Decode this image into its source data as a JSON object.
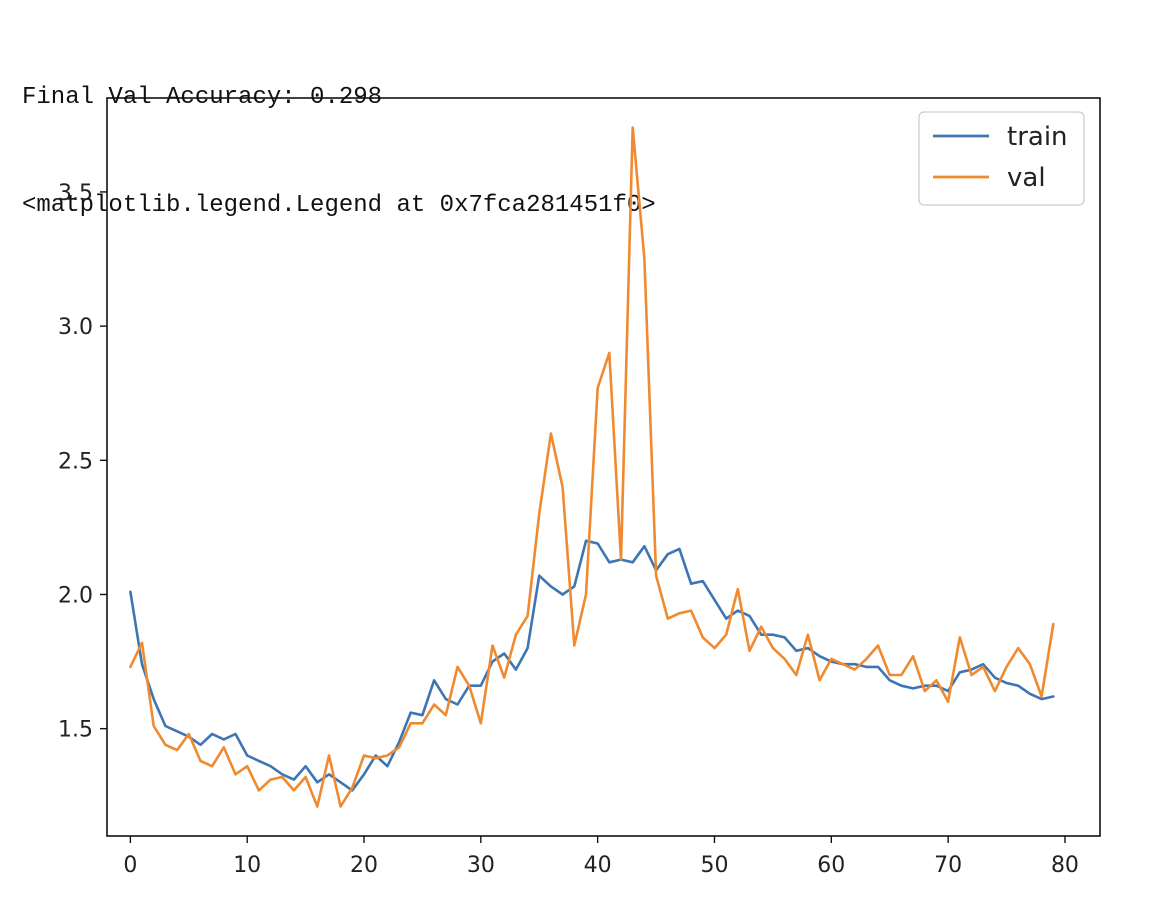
{
  "console": {
    "line1": "Final Val Accuracy: 0.298",
    "line2": "<matplotlib.legend.Legend at 0x7fca281451f0>"
  },
  "chart_data": {
    "type": "line",
    "title": "",
    "xlabel": "",
    "ylabel": "",
    "xlim": [
      -2,
      83
    ],
    "ylim": [
      1.1,
      3.85
    ],
    "xticks": [
      0,
      10,
      20,
      30,
      40,
      50,
      60,
      70,
      80
    ],
    "xtick_labels": [
      "0",
      "10",
      "20",
      "30",
      "40",
      "50",
      "60",
      "70",
      "80"
    ],
    "yticks": [
      1.5,
      2.0,
      2.5,
      3.0,
      3.5
    ],
    "ytick_labels": [
      "1.5",
      "2.0",
      "2.5",
      "3.0",
      "3.5"
    ],
    "grid": false,
    "legend_position": "top-right",
    "x": [
      0,
      1,
      2,
      3,
      4,
      5,
      6,
      7,
      8,
      9,
      10,
      11,
      12,
      13,
      14,
      15,
      16,
      17,
      18,
      19,
      20,
      21,
      22,
      23,
      24,
      25,
      26,
      27,
      28,
      29,
      30,
      31,
      32,
      33,
      34,
      35,
      36,
      37,
      38,
      39,
      40,
      41,
      42,
      43,
      44,
      45,
      46,
      47,
      48,
      49,
      50,
      51,
      52,
      53,
      54,
      55,
      56,
      57,
      58,
      59,
      60,
      61,
      62,
      63,
      64,
      65,
      66,
      67,
      68,
      69,
      70,
      71,
      72,
      73,
      74,
      75,
      76,
      77,
      78,
      79
    ],
    "series": [
      {
        "name": "train",
        "color": "#3d76b3",
        "values": [
          2.01,
          1.74,
          1.61,
          1.51,
          1.49,
          1.47,
          1.44,
          1.48,
          1.46,
          1.48,
          1.4,
          1.38,
          1.36,
          1.33,
          1.31,
          1.36,
          1.3,
          1.33,
          1.3,
          1.27,
          1.33,
          1.4,
          1.36,
          1.45,
          1.56,
          1.55,
          1.68,
          1.61,
          1.59,
          1.66,
          1.66,
          1.75,
          1.78,
          1.72,
          1.8,
          2.07,
          2.03,
          2.0,
          2.03,
          2.2,
          2.19,
          2.12,
          2.13,
          2.12,
          2.18,
          2.09,
          2.15,
          2.17,
          2.04,
          2.05,
          1.98,
          1.91,
          1.94,
          1.92,
          1.85,
          1.85,
          1.84,
          1.79,
          1.8,
          1.77,
          1.75,
          1.74,
          1.74,
          1.73,
          1.73,
          1.68,
          1.66,
          1.65,
          1.66,
          1.66,
          1.64,
          1.71,
          1.72,
          1.74,
          1.69,
          1.67,
          1.66,
          1.63,
          1.61,
          1.62
        ]
      },
      {
        "name": "val",
        "color": "#f08a30",
        "values": [
          1.73,
          1.82,
          1.51,
          1.44,
          1.42,
          1.48,
          1.38,
          1.36,
          1.43,
          1.33,
          1.36,
          1.27,
          1.31,
          1.32,
          1.27,
          1.32,
          1.21,
          1.4,
          1.21,
          1.28,
          1.4,
          1.39,
          1.4,
          1.43,
          1.52,
          1.52,
          1.59,
          1.55,
          1.73,
          1.66,
          1.52,
          1.81,
          1.69,
          1.85,
          1.92,
          2.3,
          2.6,
          2.4,
          1.81,
          2.0,
          2.77,
          2.9,
          2.13,
          3.74,
          3.25,
          2.07,
          1.91,
          1.93,
          1.94,
          1.84,
          1.8,
          1.85,
          2.02,
          1.79,
          1.88,
          1.8,
          1.76,
          1.7,
          1.85,
          1.68,
          1.76,
          1.74,
          1.72,
          1.76,
          1.81,
          1.7,
          1.7,
          1.77,
          1.64,
          1.68,
          1.6,
          1.84,
          1.7,
          1.73,
          1.64,
          1.73,
          1.8,
          1.74,
          1.62,
          1.89
        ]
      }
    ]
  }
}
